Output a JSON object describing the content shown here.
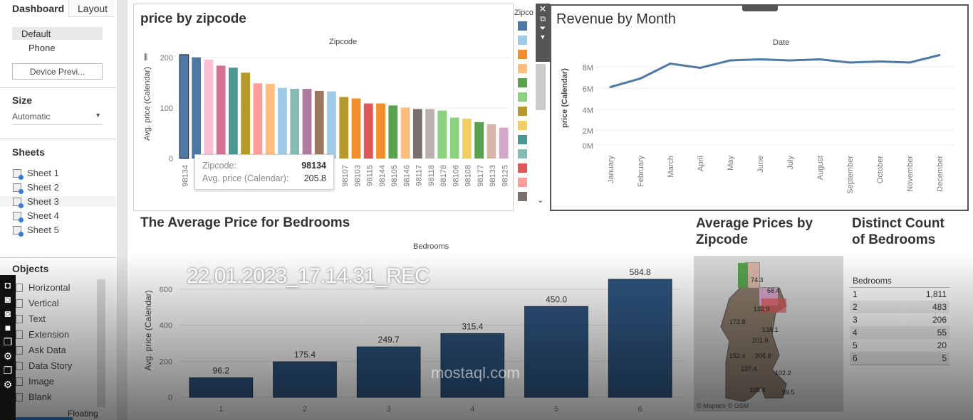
{
  "left_panel": {
    "tabs": [
      "Dashboard",
      "Layout"
    ],
    "devices": [
      "Default",
      "Phone"
    ],
    "device_preview": "Device Previ...",
    "size_label": "Size",
    "size_value": "Automatic",
    "sheets_label": "Sheets",
    "sheets": [
      "Sheet 1",
      "Sheet 2",
      "Sheet 3",
      "Sheet 4",
      "Sheet 5"
    ],
    "objects_label": "Objects",
    "objects": [
      "Horizontal",
      "Vertical",
      "Text",
      "Extension",
      "Ask Data",
      "Data Story",
      "Image",
      "Blank"
    ],
    "bottom_tab": "Floating"
  },
  "zip_chart": {
    "title": "price by zipcode",
    "header": "Zipcode",
    "ylabel": "Avg. price (Calendar)",
    "legend_title": "Zipco",
    "legend_colors": [
      "#4e79a7",
      "#a0cbe8",
      "#f28e2b",
      "#ffbe7d",
      "#59a14f",
      "#8cd17d",
      "#b6992d",
      "#f1ce63",
      "#499894",
      "#86bcb6",
      "#e15759",
      "#ff9d9a",
      "#79706e"
    ],
    "tooltip": {
      "k1": "Zipcode:",
      "v1": "98134",
      "k2": "Avg. price (Calendar):",
      "v2": "205.8"
    }
  },
  "revenue": {
    "title": "Revenue by Month",
    "header": "Date",
    "ylabel": "price (Calendar)"
  },
  "bedrooms_chart": {
    "title": "The Average Price for Bedrooms",
    "header": "Bedrooms",
    "ylabel": "Avg. price (Calendar)"
  },
  "map": {
    "title": "Average Prices by Zipcode",
    "labels": [
      "74.3",
      "68.4",
      "122.9",
      "172.8",
      "138.1",
      "201.6",
      "152.4",
      "205.8",
      "137.4",
      "102.2",
      "105.4",
      "99.5"
    ],
    "attribution": "© Mapbox © OSM"
  },
  "distinct": {
    "title": "Distinct Count of Bedrooms",
    "header": "Bedrooms",
    "rows": [
      [
        "1",
        "1,811"
      ],
      [
        "2",
        "483"
      ],
      [
        "3",
        "206"
      ],
      [
        "4",
        "55"
      ],
      [
        "5",
        "20"
      ],
      [
        "6",
        "5"
      ]
    ]
  },
  "recording": {
    "label": "22.01.2023_17.14.31_REC",
    "watermark": "mostaql.com"
  },
  "chart_data": [
    {
      "type": "bar",
      "title": "price by zipcode",
      "xlabel": "Zipcode",
      "ylabel": "Avg. price (Calendar)",
      "ylim": [
        0,
        210
      ],
      "yticks": [
        0,
        100,
        200
      ],
      "categories": [
        "98134",
        "",
        "",
        "",
        "",
        "",
        "",
        "",
        "",
        "",
        "",
        "",
        "",
        "98107",
        "98103",
        "98115",
        "98144",
        "98105",
        "98146",
        "98117",
        "98118",
        "98178",
        "98106",
        "98108",
        "98177",
        "98133",
        "98125"
      ],
      "values": [
        205.8,
        200.5,
        196,
        184,
        180,
        170,
        149,
        148,
        140,
        138,
        138,
        134,
        133,
        122,
        119,
        109,
        109,
        105,
        101,
        98,
        98,
        95,
        81,
        79,
        72,
        68,
        61
      ],
      "colors": [
        "#4e79a7",
        "#4e79a7",
        "#fabfd2",
        "#d37295",
        "#499894",
        "#b6992d",
        "#ff9d9a",
        "#ffbe7d",
        "#a0cbe8",
        "#86bcb6",
        "#b07aa1",
        "#9d7660",
        "#a0cbe8",
        "#b6992d",
        "#f28e2b",
        "#e15759",
        "#f28e2b",
        "#59a14f",
        "#ffbe7d",
        "#79706e",
        "#bab0ac",
        "#8cd17d",
        "#8cd17d",
        "#f1ce63",
        "#59a14f",
        "#d7b5a6",
        "#d4a6c8"
      ]
    },
    {
      "type": "line",
      "title": "Revenue by Month",
      "xlabel": "Date",
      "ylabel": "price (Calendar)",
      "yticks": [
        "0M",
        "2M",
        "4M",
        "6M",
        "8M"
      ],
      "categories": [
        "January",
        "February",
        "March",
        "April",
        "May",
        "June",
        "July",
        "August",
        "September",
        "October",
        "November",
        "December"
      ],
      "values": [
        6.1,
        6.9,
        8.3,
        7.9,
        8.6,
        8.7,
        8.6,
        8.7,
        8.4,
        8.5,
        8.4,
        9.1
      ],
      "unit": "M",
      "color": "#4e79a7"
    },
    {
      "type": "bar",
      "title": "The Average Price for Bedrooms",
      "xlabel": "Bedrooms",
      "ylabel": "Avg. price (Calendar)",
      "ylim": [
        0,
        700
      ],
      "yticks": [
        0,
        200,
        400,
        600
      ],
      "categories": [
        "1",
        "2",
        "3",
        "4",
        "5",
        "6"
      ],
      "values": [
        96.2,
        175.4,
        249.7,
        315.4,
        450.0,
        584.8
      ],
      "color": "#2d5580"
    }
  ]
}
